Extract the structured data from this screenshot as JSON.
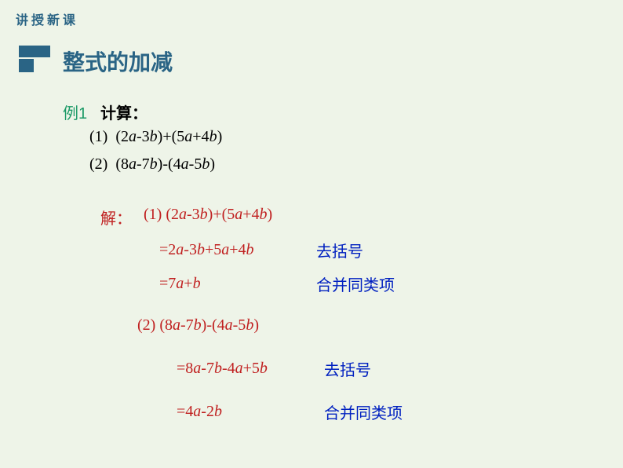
{
  "header": {
    "label": "讲授新课"
  },
  "section": {
    "title": "整式的加减"
  },
  "example": {
    "label": "例1",
    "calc_label": "计算：",
    "prob1_num": "(1)",
    "prob1_expr": "(2<i>a</i>-3<i>b</i>)+(5<i>a</i>+4<i>b</i>)",
    "prob2_num": "(2)",
    "prob2_expr": "(8<i>a</i>-7<i>b</i>)-(4<i>a</i>-5<i>b</i>)"
  },
  "solution": {
    "label": "解：",
    "s1_line1": "(1)  (2<i>a</i>-3<i>b</i>)+(5<i>a</i>+4<i>b</i>)",
    "s1_line2": "=2<i>a</i>-3<i>b</i>+5<i>a</i>+4<i>b</i>",
    "s1_note1": "去括号",
    "s1_line3": "=7<i>a</i>+<i>b</i>",
    "s1_note2": "合并同类项",
    "s2_line1": "(2)   (8<i>a</i>-7<i>b</i>)-(4<i>a</i>-5<i>b</i>)",
    "s2_line2": "=8<i>a</i>-7<i>b</i>-4<i>a</i>+5<i>b</i>",
    "s2_note1": "去括号",
    "s2_line3": "=4<i>a</i>-2<i>b</i>",
    "s2_note2": "合并同类项"
  },
  "colors": {
    "background": "#eef4e8",
    "header_text": "#2a6485",
    "section_title": "#2a6485",
    "example_label": "#1a9966",
    "black_text": "#000000",
    "solution_red": "#c02020",
    "note_blue": "#0020c0"
  }
}
